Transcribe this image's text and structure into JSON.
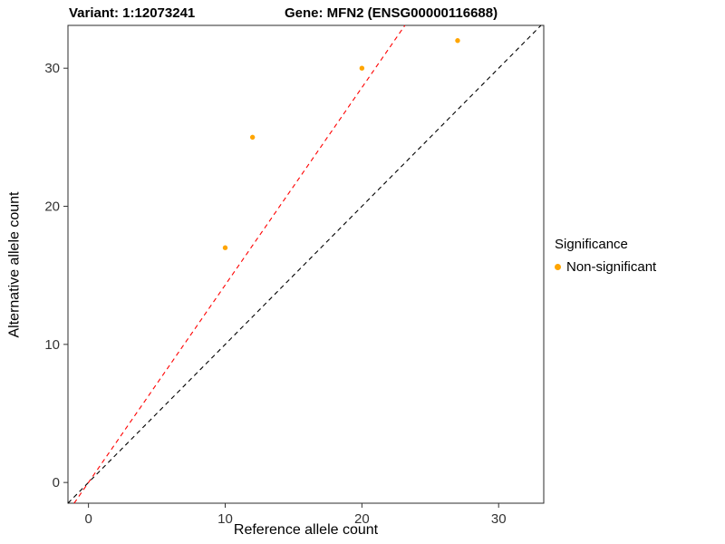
{
  "titles": {
    "variant": "Variant: 1:12073241",
    "gene": "Gene: MFN2 (ENSG00000116688)"
  },
  "chart_data": {
    "type": "scatter",
    "title": "Variant: 1:12073241 — Gene: MFN2 (ENSG00000116688)",
    "xlabel": "Reference allele count",
    "ylabel": "Alternative allele count",
    "xlim": [
      -1.5,
      33.3
    ],
    "ylim": [
      -1.5,
      33.1
    ],
    "xticks": [
      0,
      10,
      20,
      30
    ],
    "yticks": [
      0,
      10,
      20,
      30
    ],
    "grid": false,
    "panel_border_color": "#2b2b2b",
    "series": [
      {
        "name": "Non-significant",
        "color": "#FFA500",
        "points": [
          {
            "x": 10,
            "y": 17
          },
          {
            "x": 12,
            "y": 25
          },
          {
            "x": 20,
            "y": 30
          },
          {
            "x": 27,
            "y": 32
          }
        ]
      }
    ],
    "reference_lines": [
      {
        "name": "identity-line",
        "slope": 1,
        "intercept": 0,
        "color": "#000000",
        "style": "dashed"
      },
      {
        "name": "ratio-line",
        "slope": 1.43,
        "intercept": 0,
        "color": "#FF0000",
        "style": "dashed"
      }
    ],
    "legend": {
      "title": "Significance",
      "position": "right",
      "entries": [
        {
          "label": "Non-significant",
          "color": "#FFA500"
        }
      ]
    }
  }
}
